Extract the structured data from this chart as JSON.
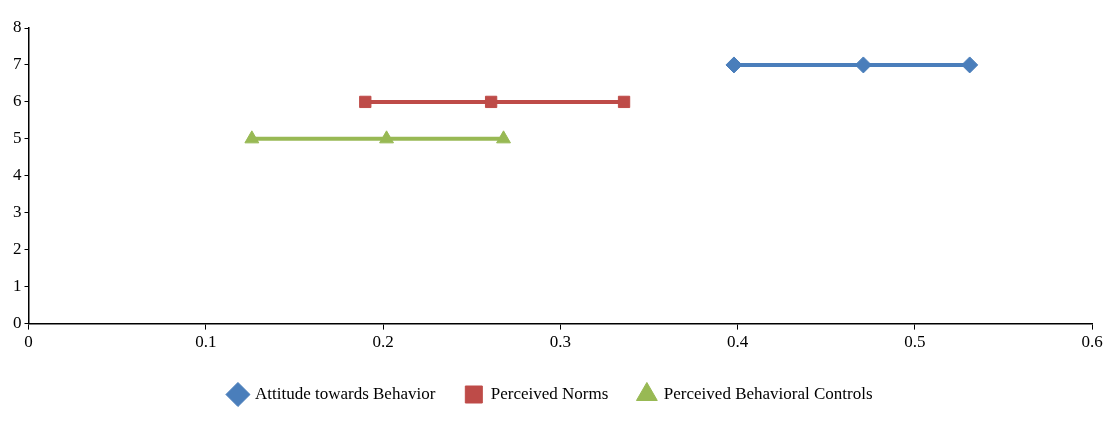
{
  "chart_data": {
    "type": "line",
    "xlim": [
      0,
      0.6
    ],
    "xticks": [
      0,
      0.1,
      0.2,
      0.3,
      0.4,
      0.5,
      0.6
    ],
    "ylim": [
      0,
      8
    ],
    "yticks": [
      0,
      1,
      2,
      3,
      4,
      5,
      6,
      7,
      8
    ],
    "grid": false,
    "legend": "bottom",
    "line_style": "solid",
    "series": [
      {
        "name": "Attitude towards Behavior",
        "color": "#4a7ebb",
        "marker": "diamond",
        "x": [
          0.398,
          0.471,
          0.531
        ],
        "values": [
          7,
          7,
          7
        ]
      },
      {
        "name": "Perceived Norms",
        "color": "#be4b48",
        "marker": "square",
        "x": [
          0.19,
          0.261,
          0.336
        ],
        "values": [
          6,
          6,
          6
        ]
      },
      {
        "name": "Perceived Behavioral Controls",
        "color": "#98b954",
        "marker": "triangle",
        "x": [
          0.126,
          0.202,
          0.268
        ],
        "values": [
          5,
          5,
          5
        ]
      }
    ]
  }
}
